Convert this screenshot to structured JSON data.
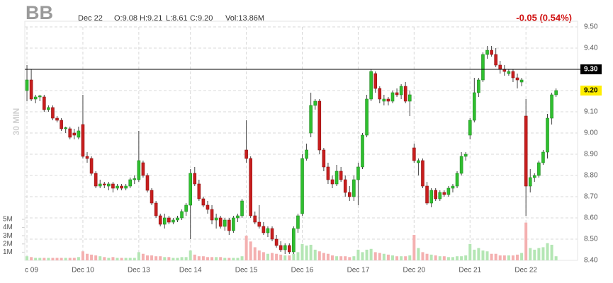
{
  "chart_data": {
    "type": "candlestick",
    "symbol": "BB",
    "date": "Dec 22",
    "quote": [
      "O:9.08",
      "H:9.21",
      "L:8.61",
      "C:9.20"
    ],
    "volume_text": "Vol:13.86M",
    "change": "-0.05 (0.54%)",
    "timeframe": "30 MIN",
    "up_color": "#2fbf2f",
    "down_color": "#c81e1e",
    "volume_up_color": "#b4e6b4",
    "volume_down_color": "#f4b0b0",
    "grid": true,
    "xlim": [
      -0.5,
      128
    ],
    "xticks": [
      {
        "value": 0,
        "label": "c 09"
      },
      {
        "value": 13,
        "label": "Dec 10"
      },
      {
        "value": 26,
        "label": "Dec 13"
      },
      {
        "value": 38,
        "label": "Dec 14"
      },
      {
        "value": 51,
        "label": "Dec 15"
      },
      {
        "value": 64,
        "label": "Dec 16"
      },
      {
        "value": 77,
        "label": "Dec 17"
      },
      {
        "value": 90,
        "label": "Dec 20"
      },
      {
        "value": 103,
        "label": "Dec 21"
      },
      {
        "value": 116,
        "label": "Dec 22"
      }
    ],
    "ylim": [
      8.4,
      9.5
    ],
    "yticks": [
      {
        "value": 8.4,
        "label": "8.40"
      },
      {
        "value": 8.5,
        "label": "8.50"
      },
      {
        "value": 8.6,
        "label": "8.60"
      },
      {
        "value": 8.7,
        "label": "8.70"
      },
      {
        "value": 8.8,
        "label": "8.80"
      },
      {
        "value": 8.9,
        "label": "8.90"
      },
      {
        "value": 9.0,
        "label": "9.00"
      },
      {
        "value": 9.1,
        "label": "9.10"
      },
      {
        "value": 9.2,
        "label": "9.20"
      },
      {
        "value": 9.3,
        "label": "9.30"
      },
      {
        "value": 9.4,
        "label": "9.40"
      },
      {
        "value": 9.5,
        "label": "9.50"
      }
    ],
    "y2lim": [
      0,
      5
    ],
    "y2ticks": [
      {
        "value": 1,
        "label": "1M"
      },
      {
        "value": 2,
        "label": "2M"
      },
      {
        "value": 3,
        "label": "3M"
      },
      {
        "value": 4,
        "label": "4M"
      },
      {
        "value": 5,
        "label": "5M"
      }
    ],
    "reference_line": {
      "value": 9.3,
      "label": "9.30"
    },
    "last_price": {
      "value": 9.2,
      "label": "9.20"
    },
    "open": [
      9.2,
      9.25,
      9.16,
      9.17,
      9.17,
      9.11,
      9.12,
      9.07,
      9.06,
      9.02,
      9.02,
      9.0,
      8.98,
      9.04,
      8.89,
      8.88,
      8.81,
      8.75,
      8.76,
      8.75,
      8.76,
      8.74,
      8.75,
      8.74,
      8.75,
      8.78,
      8.78,
      8.86,
      8.8,
      8.73,
      8.67,
      8.61,
      8.57,
      8.6,
      8.58,
      8.59,
      8.6,
      8.63,
      8.66,
      8.81,
      8.76,
      8.69,
      8.66,
      8.64,
      8.59,
      8.6,
      8.56,
      8.59,
      8.54,
      8.6,
      8.61,
      8.92,
      8.88,
      8.61,
      8.58,
      8.56,
      8.53,
      8.55,
      8.5,
      8.47,
      8.45,
      8.47,
      8.44,
      8.55,
      8.62,
      8.88,
      9.0,
      9.13,
      9.15,
      8.92,
      8.84,
      8.78,
      8.76,
      8.82,
      8.78,
      8.72,
      8.7,
      8.78,
      8.84,
      8.99,
      9.16,
      9.28,
      9.21,
      9.15,
      9.16,
      9.15,
      9.19,
      9.18,
      9.22,
      9.15,
      8.93,
      8.86,
      8.87,
      8.75,
      8.67,
      8.73,
      8.69,
      8.72,
      8.71,
      8.74,
      8.75,
      8.81,
      8.89,
      8.99,
      9.06,
      9.19,
      9.25,
      9.37,
      9.39,
      9.37,
      9.32,
      9.3,
      9.28,
      9.29,
      9.26,
      9.24,
      9.08,
      8.75,
      8.79,
      8.8,
      8.86,
      8.91,
      9.07,
      9.18
    ],
    "high": [
      9.32,
      9.3,
      9.18,
      9.18,
      9.18,
      9.13,
      9.13,
      9.08,
      9.07,
      9.03,
      9.03,
      9.02,
      9.03,
      9.18,
      8.91,
      8.89,
      8.82,
      8.78,
      8.77,
      8.77,
      8.77,
      8.76,
      8.76,
      8.76,
      8.79,
      8.8,
      9.01,
      8.87,
      8.81,
      8.74,
      8.68,
      8.62,
      8.62,
      8.61,
      8.6,
      8.61,
      8.64,
      8.67,
      8.83,
      8.84,
      8.78,
      8.7,
      8.68,
      8.66,
      8.62,
      8.61,
      8.6,
      8.6,
      8.61,
      8.62,
      8.69,
      9.06,
      8.89,
      8.63,
      8.66,
      8.58,
      8.56,
      8.56,
      8.52,
      8.49,
      8.48,
      8.48,
      8.56,
      8.62,
      8.9,
      8.95,
      9.19,
      9.16,
      9.16,
      8.93,
      8.86,
      8.8,
      8.85,
      8.84,
      8.8,
      8.75,
      8.8,
      8.86,
      9.0,
      9.18,
      9.3,
      9.29,
      9.22,
      9.18,
      9.17,
      9.2,
      9.21,
      9.23,
      9.24,
      9.2,
      8.95,
      8.88,
      8.88,
      8.77,
      8.74,
      8.74,
      8.73,
      8.73,
      8.75,
      8.76,
      8.82,
      8.91,
      8.91,
      9.07,
      9.26,
      9.26,
      9.38,
      9.41,
      9.41,
      9.4,
      9.34,
      9.32,
      9.3,
      9.3,
      9.28,
      9.26,
      9.16,
      8.83,
      8.81,
      8.87,
      8.92,
      9.09,
      9.19,
      9.21
    ],
    "low": [
      9.15,
      9.15,
      9.14,
      9.15,
      9.1,
      9.1,
      9.06,
      9.05,
      9.01,
      9.0,
      8.97,
      8.97,
      8.97,
      8.88,
      8.86,
      8.8,
      8.74,
      8.74,
      8.74,
      8.73,
      8.72,
      8.73,
      8.73,
      8.73,
      8.74,
      8.76,
      8.77,
      8.79,
      8.72,
      8.66,
      8.6,
      8.56,
      8.55,
      8.57,
      8.57,
      8.58,
      8.59,
      8.61,
      8.5,
      8.75,
      8.68,
      8.65,
      8.62,
      8.57,
      8.55,
      8.55,
      8.54,
      8.52,
      8.53,
      8.58,
      8.6,
      8.86,
      8.6,
      8.57,
      8.55,
      8.52,
      8.51,
      8.49,
      8.46,
      8.44,
      8.43,
      8.43,
      8.43,
      8.53,
      8.61,
      8.87,
      8.98,
      9.11,
      8.9,
      8.82,
      8.76,
      8.74,
      8.75,
      8.77,
      8.7,
      8.68,
      8.68,
      8.66,
      8.83,
      8.98,
      9.15,
      9.19,
      9.14,
      9.13,
      9.13,
      9.14,
      9.17,
      9.16,
      9.14,
      9.08,
      8.86,
      8.8,
      8.74,
      8.66,
      8.65,
      8.68,
      8.68,
      8.7,
      8.7,
      8.72,
      8.74,
      8.8,
      8.87,
      8.97,
      9.05,
      9.17,
      9.24,
      9.35,
      9.36,
      9.31,
      9.28,
      9.27,
      9.27,
      9.24,
      9.21,
      9.22,
      8.61,
      8.72,
      8.77,
      8.79,
      8.85,
      8.88,
      9.04,
      9.17
    ],
    "close": [
      9.25,
      9.16,
      9.17,
      9.175,
      9.11,
      9.12,
      9.07,
      9.06,
      9.02,
      9.025,
      8.98,
      8.99,
      9.01,
      8.89,
      8.88,
      8.81,
      8.75,
      8.76,
      8.755,
      8.76,
      8.74,
      8.75,
      8.74,
      8.75,
      8.78,
      8.785,
      8.87,
      8.8,
      8.73,
      8.67,
      8.61,
      8.57,
      8.6,
      8.58,
      8.59,
      8.6,
      8.63,
      8.66,
      8.81,
      8.76,
      8.69,
      8.66,
      8.64,
      8.59,
      8.6,
      8.56,
      8.59,
      8.54,
      8.6,
      8.61,
      8.68,
      8.88,
      8.61,
      8.58,
      8.56,
      8.53,
      8.55,
      8.5,
      8.47,
      8.45,
      8.47,
      8.44,
      8.55,
      8.61,
      8.88,
      8.92,
      9.13,
      9.15,
      8.92,
      8.84,
      8.78,
      8.76,
      8.82,
      8.78,
      8.72,
      8.7,
      8.78,
      8.84,
      8.99,
      9.16,
      9.29,
      9.21,
      9.16,
      9.16,
      9.15,
      9.19,
      9.18,
      9.22,
      9.15,
      9.18,
      8.87,
      8.87,
      8.75,
      8.67,
      8.73,
      8.69,
      8.72,
      8.71,
      8.74,
      8.75,
      8.81,
      8.89,
      8.9,
      9.06,
      9.19,
      9.25,
      9.37,
      9.39,
      9.37,
      9.32,
      9.3,
      9.29,
      9.29,
      9.26,
      9.25,
      9.25,
      8.75,
      8.79,
      8.8,
      8.86,
      8.91,
      9.07,
      9.18,
      9.2
    ],
    "volume": [
      0.5,
      0.4,
      0.3,
      0.3,
      0.3,
      0.3,
      0.3,
      0.3,
      0.3,
      0.3,
      0.3,
      0.3,
      0.4,
      1.1,
      0.8,
      0.7,
      0.6,
      0.5,
      0.4,
      0.3,
      0.4,
      0.3,
      0.3,
      0.3,
      0.3,
      0.3,
      1.0,
      0.8,
      0.6,
      0.6,
      0.5,
      0.5,
      0.4,
      0.4,
      0.3,
      0.3,
      0.4,
      0.4,
      1.2,
      0.7,
      0.5,
      0.5,
      0.4,
      0.4,
      0.4,
      0.4,
      0.3,
      0.3,
      0.3,
      0.3,
      0.5,
      3.0,
      2.3,
      1.6,
      1.2,
      1.0,
      0.8,
      0.9,
      0.8,
      0.7,
      0.6,
      0.6,
      0.8,
      1.0,
      2.0,
      1.8,
      1.9,
      1.3,
      1.1,
      0.9,
      0.8,
      0.6,
      0.5,
      0.5,
      0.5,
      0.4,
      0.5,
      1.3,
      1.0,
      1.3,
      1.4,
      1.0,
      0.9,
      0.8,
      0.7,
      0.6,
      0.5,
      0.5,
      0.5,
      0.6,
      3.1,
      1.5,
      1.0,
      0.8,
      0.7,
      0.6,
      0.5,
      0.5,
      0.4,
      0.4,
      0.5,
      0.5,
      0.6,
      2.0,
      1.3,
      1.5,
      1.2,
      1.1,
      0.8,
      0.8,
      0.6,
      0.6,
      0.6,
      0.6,
      0.7,
      0.9,
      4.6,
      1.5,
      1.3,
      1.5,
      1.6,
      2.1,
      1.9,
      0.5
    ]
  }
}
